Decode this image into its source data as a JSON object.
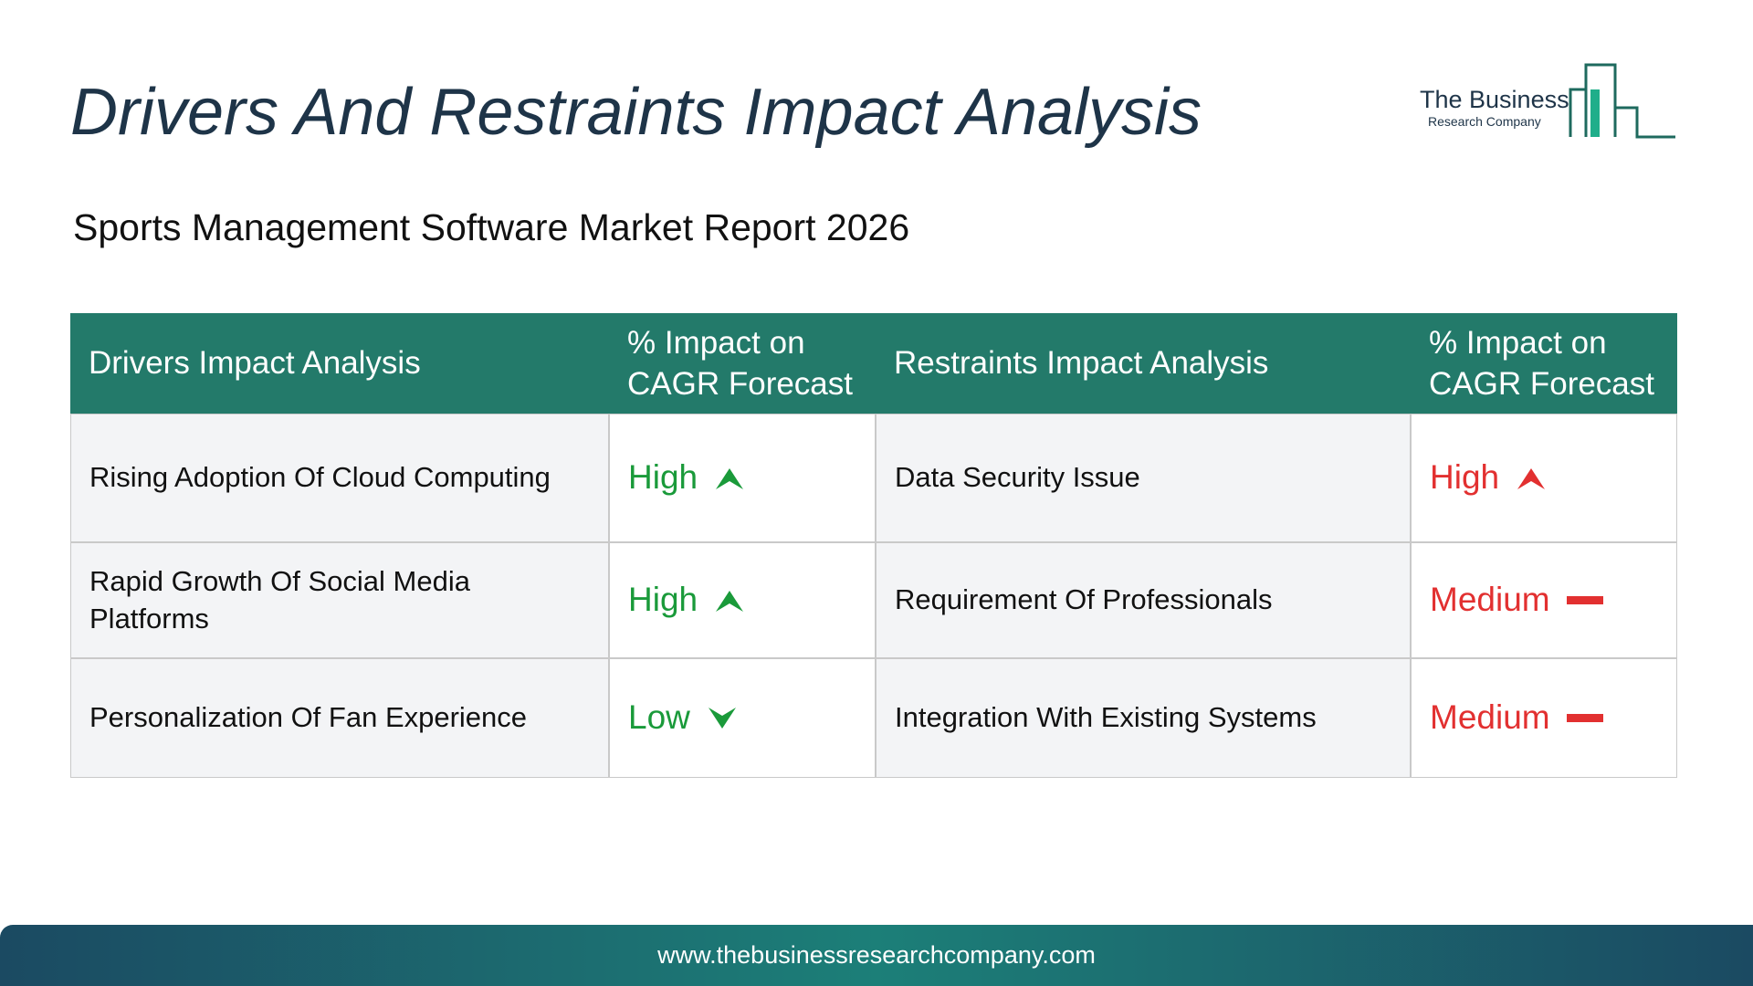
{
  "header": {
    "title": "Drivers And Restraints Impact Analysis",
    "subtitle": "Sports Management Software Market Report 2026",
    "logo": {
      "line1": "The Business",
      "line2": "Research Company"
    }
  },
  "table": {
    "headers": [
      "Drivers Impact Analysis",
      "% Impact on CAGR Forecast",
      "Restraints Impact Analysis",
      "% Impact on CAGR Forecast"
    ],
    "rows": [
      [
        "Rising Adoption Of Cloud Computing",
        "High",
        "Data Security Issue",
        "High"
      ],
      [
        "Rapid Growth Of Social Media Platforms",
        "High",
        "Requirement Of Professionals",
        "Medium"
      ],
      [
        "Personalization Of Fan Experience",
        "Low",
        "Integration With Existing Systems",
        "Medium"
      ]
    ]
  },
  "footer": {
    "url": "www.thebusinessresearchcompany.com"
  }
}
